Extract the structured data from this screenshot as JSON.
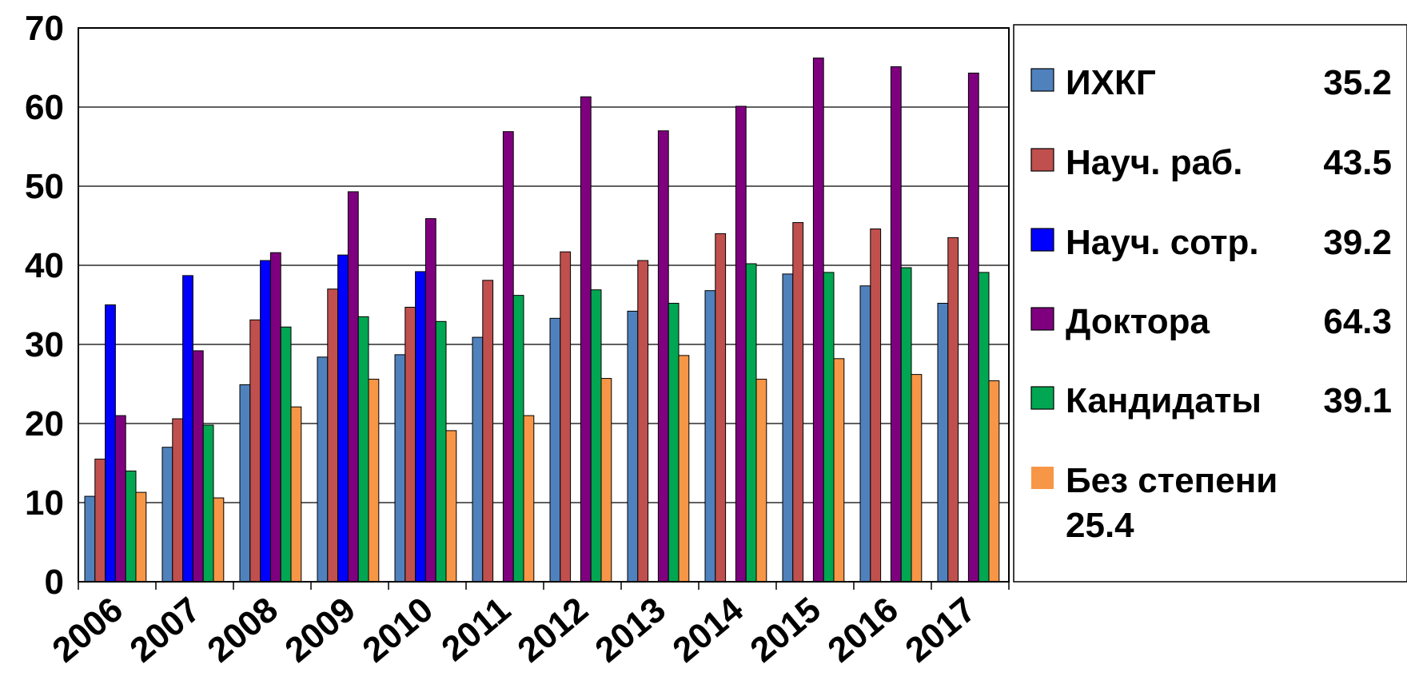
{
  "chart_data": {
    "type": "bar",
    "title": "",
    "xlabel": "",
    "ylabel": "",
    "ylim": [
      0,
      70
    ],
    "yticks": [
      0,
      10,
      20,
      30,
      40,
      50,
      60,
      70
    ],
    "grid": true,
    "legend_position": "right",
    "categories": [
      "2006",
      "2007",
      "2008",
      "2009",
      "2010",
      "2011",
      "2012",
      "2013",
      "2014",
      "2015",
      "2016",
      "2017"
    ],
    "series": [
      {
        "name": "ИХКГ",
        "legend_value": "35.2",
        "color": "#4F81BD",
        "values": [
          10.8,
          17.0,
          24.9,
          28.4,
          28.7,
          30.9,
          33.3,
          34.2,
          36.8,
          38.9,
          37.4,
          35.2
        ]
      },
      {
        "name": "Науч. раб.",
        "legend_value": "43.5",
        "color": "#C0504D",
        "values": [
          15.5,
          20.6,
          33.1,
          37.0,
          34.7,
          38.1,
          41.7,
          40.6,
          44.0,
          45.4,
          44.6,
          43.5
        ]
      },
      {
        "name": "Науч. сотр.",
        "legend_value": "39.2",
        "color": "#0000FF",
        "values": [
          35.0,
          38.7,
          40.6,
          41.3,
          39.2,
          null,
          null,
          null,
          null,
          null,
          null,
          null
        ]
      },
      {
        "name": "Доктора",
        "legend_value": "64.3",
        "color": "#7F007F",
        "values": [
          21.0,
          29.2,
          41.6,
          49.3,
          45.9,
          56.9,
          61.3,
          57.0,
          60.1,
          66.2,
          65.1,
          64.3
        ]
      },
      {
        "name": "Кандидаты",
        "legend_value": "39.1",
        "color": "#00A651",
        "values": [
          14.0,
          19.8,
          32.2,
          33.5,
          32.9,
          36.2,
          36.9,
          35.2,
          40.2,
          39.1,
          39.7,
          39.1
        ]
      },
      {
        "name": "Без степени",
        "legend_value": "25.4",
        "color": "#F79646",
        "values": [
          11.3,
          10.6,
          22.1,
          25.6,
          19.1,
          21.0,
          25.7,
          28.6,
          25.6,
          28.2,
          26.2,
          25.4
        ]
      }
    ]
  }
}
